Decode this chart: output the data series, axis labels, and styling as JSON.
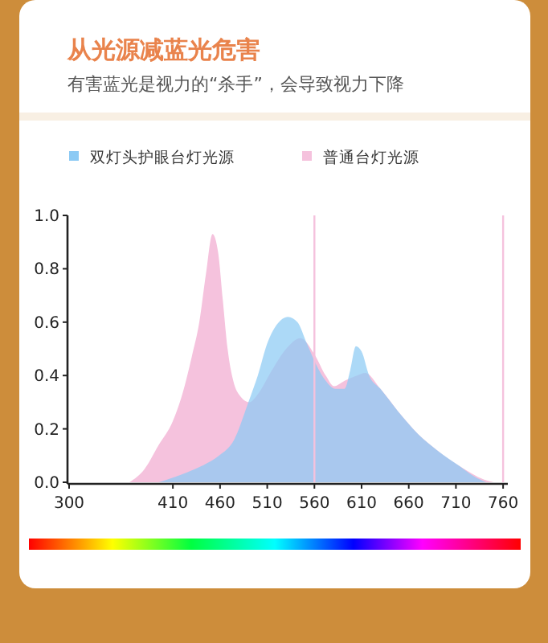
{
  "chart_data": {
    "type": "area",
    "title": "从光源减蓝光危害",
    "subtitle": "有害蓝光是视力的“杀手”，会导致视力下降",
    "series": [
      {
        "name": "双灯头护眼台灯光源",
        "color": "#8ccaf4",
        "x": [
          395,
          420,
          440,
          459,
          475,
          490,
          500,
          510,
          520,
          532,
          542,
          552,
          562,
          572,
          582,
          592,
          598,
          604,
          610,
          618,
          630,
          650,
          670,
          690,
          714,
          730,
          742
        ],
        "values": [
          0,
          0.03,
          0.06,
          0.1,
          0.16,
          0.3,
          0.4,
          0.52,
          0.59,
          0.62,
          0.6,
          0.52,
          0.44,
          0.38,
          0.35,
          0.35,
          0.42,
          0.51,
          0.49,
          0.4,
          0.35,
          0.26,
          0.18,
          0.12,
          0.06,
          0.02,
          0
        ]
      },
      {
        "name": "普通台灯光源",
        "color": "#f5c2dd",
        "x": [
          364,
          380,
          395,
          410,
          420,
          430,
          438,
          445,
          452,
          458,
          463,
          468,
          474,
          482,
          491,
          500,
          515,
          530,
          545,
          560,
          572,
          581,
          592,
          605,
          614,
          630,
          650,
          670,
          690,
          714,
          740,
          750
        ],
        "values": [
          0,
          0.05,
          0.14,
          0.23,
          0.33,
          0.47,
          0.6,
          0.78,
          0.93,
          0.86,
          0.68,
          0.5,
          0.38,
          0.32,
          0.3,
          0.33,
          0.42,
          0.5,
          0.54,
          0.48,
          0.4,
          0.36,
          0.38,
          0.4,
          0.41,
          0.35,
          0.26,
          0.18,
          0.12,
          0.06,
          0.01,
          0
        ]
      }
    ],
    "xlim": [
      300,
      765
    ],
    "xticks": [
      300,
      410,
      460,
      510,
      560,
      610,
      660,
      710,
      760
    ],
    "ylim": [
      0,
      1.0
    ],
    "yticks": [
      {
        "value": 0,
        "label": "0.0"
      },
      {
        "value": 0.2,
        "label": "0.2"
      },
      {
        "value": 0.4,
        "label": "0.4"
      },
      {
        "value": 0.6,
        "label": "0.6"
      },
      {
        "value": 0.8,
        "label": "0.8"
      },
      {
        "value": 1,
        "label": "1.0"
      }
    ],
    "ref_lines": [
      {
        "axis": "x",
        "value": 560,
        "color": "#f5c2dd"
      },
      {
        "axis": "x",
        "value": 760,
        "color": "#f5c2dd"
      }
    ],
    "legend": "top",
    "grid": false
  }
}
